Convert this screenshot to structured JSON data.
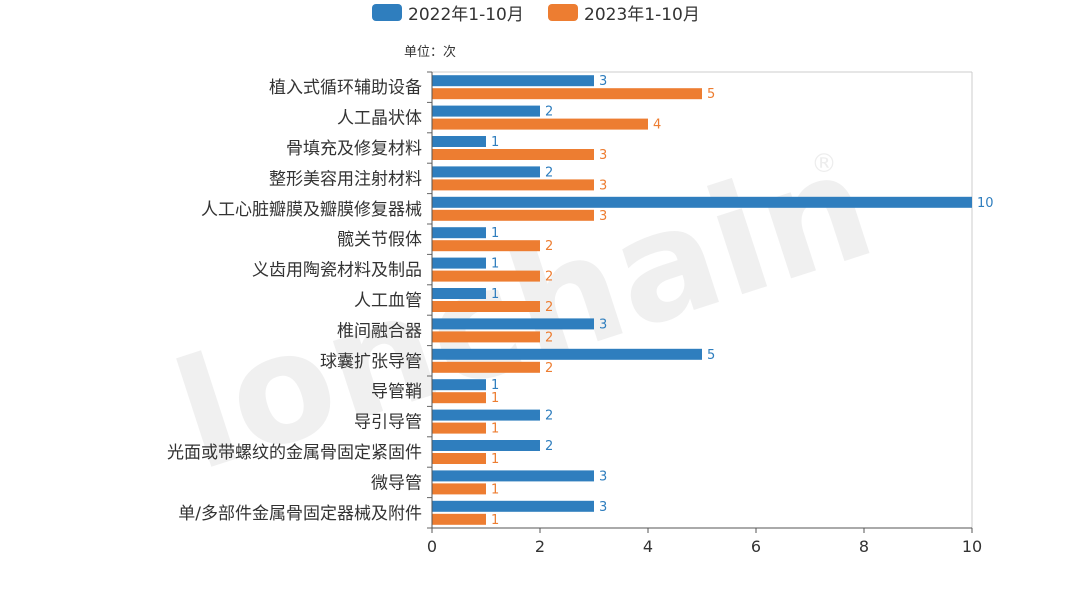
{
  "chart_data": {
    "type": "bar",
    "orientation": "horizontal",
    "unit": "单位：次",
    "categories": [
      "植入式循环辅助设备",
      "人工晶状体",
      "骨填充及修复材料",
      "整形美容用注射材料",
      "人工心脏瓣膜及瓣膜修复器械",
      "髋关节假体",
      "义齿用陶瓷材料及制品",
      "人工血管",
      "椎间融合器",
      "球囊扩张导管",
      "导管鞘",
      "导引导管",
      "光面或带螺纹的金属骨固定紧固件",
      "微导管",
      "单/多部件金属骨固定器械及附件"
    ],
    "series": [
      {
        "name": "2022年1-10月",
        "color": "#2f7ebe",
        "values": [
          3,
          2,
          1,
          2,
          10,
          1,
          1,
          1,
          3,
          5,
          1,
          2,
          2,
          3,
          3
        ]
      },
      {
        "name": "2023年1-10月",
        "color": "#ed7d31",
        "values": [
          5,
          4,
          3,
          3,
          3,
          2,
          2,
          2,
          2,
          2,
          1,
          1,
          1,
          1,
          1
        ]
      }
    ],
    "xlim": [
      0,
      10
    ],
    "xticks": [
      "0",
      "2",
      "4",
      "6",
      "8",
      "10"
    ],
    "legend_position": "top-center",
    "watermark": "lonchain"
  }
}
